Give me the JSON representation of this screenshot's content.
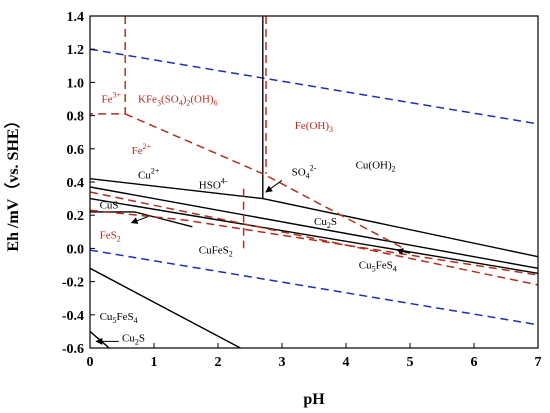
{
  "chart_data": {
    "type": "line",
    "xlabel": "pH",
    "ylabel": "Eh /mV（vs. SHE）",
    "xlim": [
      0,
      7
    ],
    "ylim": [
      -0.6,
      1.4
    ],
    "xticks": [
      "0",
      "1",
      "2",
      "3",
      "4",
      "5",
      "6",
      "7"
    ],
    "yticks": [
      "-0.6",
      "-0.4",
      "-0.2",
      "0.0",
      "0.2",
      "0.4",
      "0.6",
      "0.8",
      "1.0",
      "1.2",
      "1.4"
    ],
    "colors": {
      "cu_lines": "#000000",
      "fe_lines": "#b03020",
      "water_lines": "#1f2fb0"
    },
    "lines": [
      {
        "group": "water",
        "style": "dashed",
        "color": "#1f2fb0",
        "points": [
          [
            0,
            1.2
          ],
          [
            7,
            0.75
          ]
        ]
      },
      {
        "group": "water",
        "style": "dashed",
        "color": "#1f2fb0",
        "points": [
          [
            0,
            -0.01
          ],
          [
            7,
            -0.46
          ]
        ]
      },
      {
        "group": "cu",
        "style": "solid",
        "color": "#000000",
        "points": [
          [
            2.7,
            1.4
          ],
          [
            2.7,
            0.3
          ]
        ]
      },
      {
        "group": "cu",
        "style": "solid",
        "color": "#000000",
        "points": [
          [
            0,
            0.42
          ],
          [
            2.7,
            0.3
          ]
        ]
      },
      {
        "group": "cu",
        "style": "solid",
        "color": "#000000",
        "points": [
          [
            2.7,
            0.3
          ],
          [
            7,
            -0.05
          ]
        ]
      },
      {
        "group": "cu",
        "style": "solid",
        "color": "#000000",
        "points": [
          [
            0,
            0.37
          ],
          [
            7,
            -0.12
          ]
        ]
      },
      {
        "group": "cu",
        "style": "solid",
        "color": "#000000",
        "points": [
          [
            0,
            0.3
          ],
          [
            7,
            -0.15
          ]
        ]
      },
      {
        "group": "cu",
        "style": "solid",
        "color": "#000000",
        "points": [
          [
            0,
            0.22
          ],
          [
            0.7,
            0.22
          ],
          [
            1.1,
            0.18
          ],
          [
            1.6,
            0.13
          ]
        ]
      },
      {
        "group": "cu",
        "style": "solid",
        "color": "#000000",
        "points": [
          [
            0,
            -0.12
          ],
          [
            2.35,
            -0.6
          ]
        ]
      },
      {
        "group": "cu",
        "style": "solid",
        "color": "#000000",
        "points": [
          [
            0,
            -0.5
          ],
          [
            0.3,
            -0.6
          ]
        ]
      },
      {
        "group": "fe",
        "style": "dashed",
        "color": "#b03020",
        "points": [
          [
            0.55,
            1.4
          ],
          [
            0.55,
            0.81
          ],
          [
            0,
            0.81
          ]
        ]
      },
      {
        "group": "fe",
        "style": "dashed",
        "color": "#b03020",
        "points": [
          [
            0.55,
            0.81
          ],
          [
            2.7,
            0.45
          ],
          [
            4.9,
            0.0
          ]
        ]
      },
      {
        "group": "fe",
        "style": "dashed",
        "color": "#b03020",
        "points": [
          [
            2.75,
            1.4
          ],
          [
            2.75,
            0.45
          ]
        ]
      },
      {
        "group": "fe",
        "style": "dashed",
        "color": "#b03020",
        "points": [
          [
            2.4,
            0.36
          ],
          [
            2.4,
            0.0
          ]
        ]
      },
      {
        "group": "fe",
        "style": "dashed",
        "color": "#b03020",
        "points": [
          [
            0,
            0.34
          ],
          [
            7,
            -0.22
          ]
        ]
      },
      {
        "group": "fe",
        "style": "dashed",
        "color": "#b03020",
        "points": [
          [
            0,
            0.23
          ],
          [
            1.5,
            0.17
          ],
          [
            7,
            -0.16
          ]
        ]
      }
    ],
    "arrows": [
      {
        "from": [
          3.0,
          0.41
        ],
        "to": [
          2.75,
          0.34
        ]
      },
      {
        "from": [
          0.9,
          0.19
        ],
        "to": [
          0.65,
          0.155
        ]
      },
      {
        "from": [
          5.0,
          -0.03
        ],
        "to": [
          4.8,
          -0.01
        ]
      },
      {
        "from": [
          0.45,
          -0.56
        ],
        "to": [
          0.1,
          -0.56
        ]
      }
    ],
    "region_labels": [
      {
        "text": "Fe",
        "sup": "3+",
        "sub": "",
        "color": "red",
        "x": 0.18,
        "y": 0.88
      },
      {
        "text": "KFe",
        "sub": "3",
        "rest": "(SO",
        "sub2": "4",
        "rest2": ")",
        "sub3": "2",
        "rest3": "(OH)",
        "sub4": "6",
        "color": "red",
        "x": 0.75,
        "y": 0.88
      },
      {
        "text": "Fe(OH)",
        "sub": "3",
        "color": "red",
        "x": 3.2,
        "y": 0.72
      },
      {
        "text": "Fe",
        "sup": "2+",
        "color": "red",
        "x": 0.65,
        "y": 0.57
      },
      {
        "text": "Cu",
        "sup": "2+",
        "color": "black",
        "x": 0.75,
        "y": 0.42
      },
      {
        "text": "HSO",
        "sup": "4-",
        "color": "black",
        "x": 1.7,
        "y": 0.36
      },
      {
        "text": "SO",
        "sub": "4",
        "sup": "2-",
        "color": "black",
        "x": 3.15,
        "y": 0.44
      },
      {
        "text": "Cu(OH)",
        "sub": "2",
        "color": "black",
        "x": 4.15,
        "y": 0.48
      },
      {
        "text": "CuS",
        "color": "black",
        "x": 0.15,
        "y": 0.24
      },
      {
        "text": "Cu",
        "sub": "2",
        "rest": "S",
        "color": "black",
        "x": 3.5,
        "y": 0.14
      },
      {
        "text": "FeS",
        "sub": "2",
        "color": "red",
        "x": 0.15,
        "y": 0.06
      },
      {
        "text": "CuFeS",
        "sub": "2",
        "color": "black",
        "x": 1.7,
        "y": -0.03
      },
      {
        "text": "Cu",
        "sub": "5",
        "rest": "FeS",
        "sub2": "4",
        "color": "black",
        "x": 4.2,
        "y": -0.12
      },
      {
        "text": "Cu",
        "sub": "5",
        "rest": "FeS",
        "sub2": "4",
        "color": "black",
        "x": 0.15,
        "y": -0.43
      },
      {
        "text": "Cu",
        "sub": "2",
        "rest": "S",
        "color": "black",
        "x": 0.5,
        "y": -0.56
      }
    ]
  }
}
